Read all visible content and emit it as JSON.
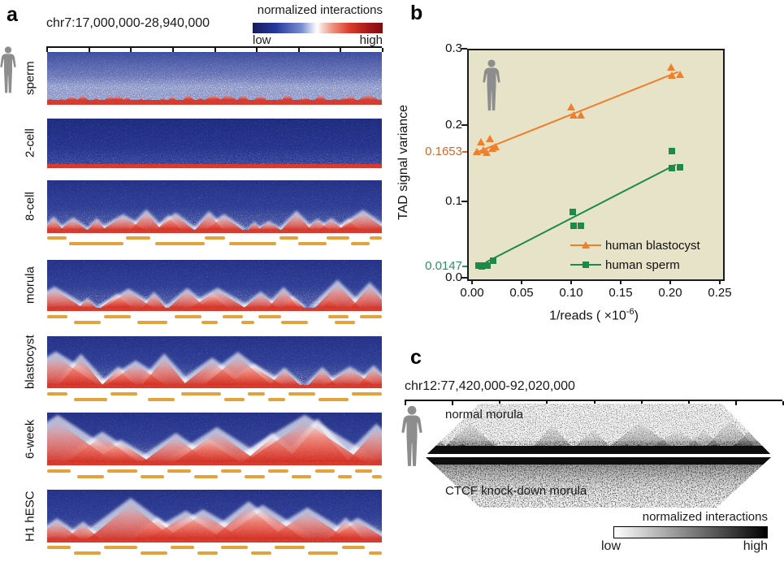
{
  "colors": {
    "orange": "#ef7f2a",
    "green": "#1d8a4c",
    "orange_text": "#d96527",
    "green_text": "#2f8f63",
    "plot_bg": "#e7e3c9",
    "tad_bar": "#e3a23c",
    "silhouette": "#8d8d8d"
  },
  "panel_a": {
    "label": "a",
    "region": "chr7:17,000,000-28,940,000",
    "colorbar": {
      "title": "normalized interactions",
      "low": "low",
      "high": "high"
    },
    "rows": [
      {
        "label": "sperm",
        "tad_bars": []
      },
      {
        "label": "2-cell",
        "tad_bars": []
      },
      {
        "label": "8-cell",
        "tad_bars": [
          [
            0,
            0,
            5.8
          ],
          [
            0,
            23.5,
            7.3
          ],
          [
            0,
            47,
            6.1
          ],
          [
            0,
            69.3,
            5.6
          ],
          [
            0,
            83.4,
            6.9
          ],
          [
            0,
            96.4,
            3.6
          ],
          [
            1,
            6.6,
            16.1
          ],
          [
            1,
            32.4,
            14.6
          ],
          [
            1,
            54.3,
            14.1
          ],
          [
            1,
            74.9,
            8.7
          ],
          [
            1,
            90.7,
            5.7
          ]
        ]
      },
      {
        "label": "morula",
        "tad_bars": [
          [
            0,
            0,
            6
          ],
          [
            0,
            17,
            8
          ],
          [
            0,
            38,
            8
          ],
          [
            0,
            52.5,
            6
          ],
          [
            0,
            63,
            7
          ],
          [
            0,
            84,
            6
          ],
          [
            0,
            93.5,
            6.5
          ],
          [
            1,
            8,
            8
          ],
          [
            1,
            27,
            9
          ],
          [
            1,
            46,
            5
          ],
          [
            1,
            58,
            4
          ],
          [
            1,
            70,
            8
          ],
          [
            1,
            86,
            6
          ]
        ]
      },
      {
        "label": "blastocyst",
        "tad_bars": [
          [
            0,
            0,
            6
          ],
          [
            0,
            19,
            8
          ],
          [
            0,
            40,
            12
          ],
          [
            0,
            60,
            5
          ],
          [
            0,
            72,
            8
          ],
          [
            0,
            91,
            9
          ],
          [
            1,
            8,
            10
          ],
          [
            1,
            30,
            8
          ],
          [
            1,
            53,
            6
          ],
          [
            1,
            66,
            5
          ],
          [
            1,
            81,
            9
          ]
        ]
      },
      {
        "label": "6-week",
        "tad_bars": [
          [
            0,
            0,
            7
          ],
          [
            0,
            18,
            9
          ],
          [
            0,
            36,
            7
          ],
          [
            0,
            52,
            6
          ],
          [
            0,
            66,
            6
          ],
          [
            0,
            80,
            6
          ],
          [
            0,
            92,
            5
          ],
          [
            1,
            9,
            8
          ],
          [
            1,
            28,
            7
          ],
          [
            1,
            44,
            7
          ],
          [
            1,
            59,
            6
          ],
          [
            1,
            73,
            6
          ],
          [
            1,
            87,
            4
          ],
          [
            1,
            97,
            3
          ]
        ]
      },
      {
        "label": "H1 hESC",
        "tad_bars": [
          [
            0,
            0,
            7
          ],
          [
            0,
            17,
            10
          ],
          [
            0,
            37,
            7
          ],
          [
            0,
            52,
            8
          ],
          [
            0,
            68,
            9
          ],
          [
            0,
            88,
            7
          ],
          [
            1,
            8,
            8
          ],
          [
            1,
            28,
            8
          ],
          [
            1,
            45,
            6
          ],
          [
            1,
            61,
            6
          ],
          [
            1,
            78,
            9
          ],
          [
            1,
            96,
            4
          ]
        ]
      }
    ]
  },
  "panel_b": {
    "label": "b",
    "ylabel": "TAD signal variance",
    "xlabel_prefix": "1/reads ( ×10",
    "xlabel_sup": "-6",
    "xlabel_suffix": ")",
    "y_ticks": [
      {
        "label": "0.3",
        "value": 0.3
      },
      {
        "label": "0.2",
        "value": 0.2
      },
      {
        "label": "0.1",
        "value": 0.1
      },
      {
        "label": "0.0",
        "value": 0.0
      }
    ],
    "y_marks": [
      {
        "label": "0.1653",
        "value": 0.1653,
        "color": "#d96527"
      },
      {
        "label": "0.0147",
        "value": 0.0147,
        "color": "#2f8f63"
      }
    ],
    "x_ticks": [
      {
        "label": "0.00",
        "value": 0
      },
      {
        "label": "0.05",
        "value": 0.05
      },
      {
        "label": "0.10",
        "value": 0.1
      },
      {
        "label": "0.15",
        "value": 0.15
      },
      {
        "label": "0.20",
        "value": 0.2
      },
      {
        "label": "0.25",
        "value": 0.25
      }
    ]
  },
  "panel_c": {
    "label": "c",
    "region": "chr12:77,420,000-92,020,000",
    "map_top_label": "normal morula",
    "map_bottom_label": "CTCF knock-down morula",
    "colorbar": {
      "title": "normalized interactions",
      "low": "low",
      "high": "high"
    }
  },
  "chart_data": {
    "type": "scatter",
    "xlabel": "1/reads (×10^-6)",
    "ylabel": "TAD signal variance",
    "xlim": [
      0,
      0.25
    ],
    "ylim": [
      0,
      0.3
    ],
    "grid": false,
    "legend_position": "bottom-right",
    "series": [
      {
        "name": "human blastocyst",
        "marker": "triangle",
        "color": "#ef7f2a",
        "points": [
          [
            0.003,
            0.166
          ],
          [
            0.007,
            0.179
          ],
          [
            0.01,
            0.168
          ],
          [
            0.013,
            0.165
          ],
          [
            0.016,
            0.183
          ],
          [
            0.019,
            0.17
          ],
          [
            0.022,
            0.172
          ],
          [
            0.098,
            0.225
          ],
          [
            0.101,
            0.214
          ],
          [
            0.108,
            0.214
          ],
          [
            0.199,
            0.277
          ],
          [
            0.2,
            0.266
          ],
          [
            0.208,
            0.267
          ]
        ],
        "trend": {
          "x1": 0,
          "y1": 0.1653,
          "x2": 0.206,
          "y2": 0.272
        },
        "intercept_label": "0.1653"
      },
      {
        "name": "human sperm",
        "marker": "square",
        "color": "#1d8a4c",
        "points": [
          [
            0.005,
            0.018
          ],
          [
            0.008,
            0.017
          ],
          [
            0.011,
            0.018
          ],
          [
            0.014,
            0.018
          ],
          [
            0.02,
            0.024
          ],
          [
            0.1,
            0.088
          ],
          [
            0.101,
            0.07
          ],
          [
            0.108,
            0.07
          ],
          [
            0.2,
            0.168
          ],
          [
            0.2,
            0.146
          ],
          [
            0.208,
            0.147
          ]
        ],
        "trend": {
          "x1": 0.012,
          "y1": 0.0227,
          "x2": 0.204,
          "y2": 0.151
        },
        "intercept_label": "0.0147"
      }
    ]
  }
}
